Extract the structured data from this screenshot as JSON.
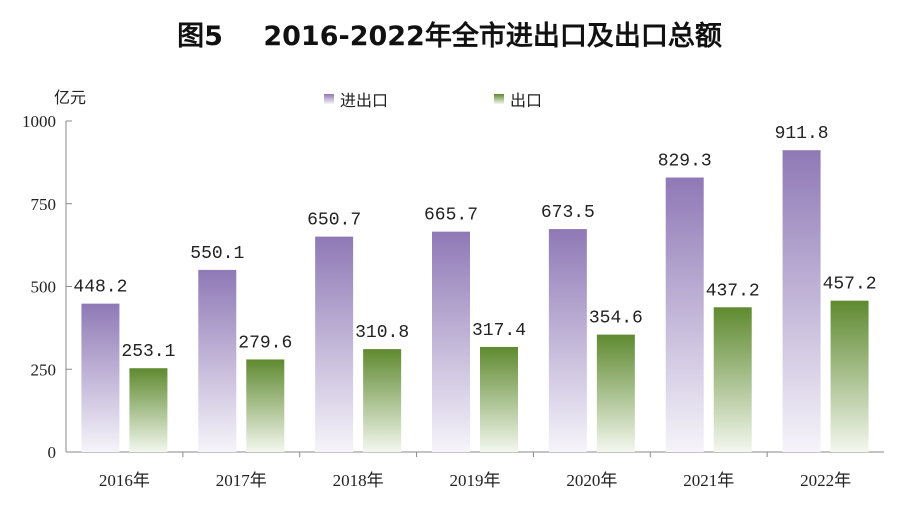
{
  "chart_data": {
    "type": "bar",
    "title": "图5　 2016-2022年全市进出口及出口总额",
    "ylabel": "亿元",
    "xlabel": "",
    "ylim": [
      0,
      1000
    ],
    "yticks": [
      0,
      250,
      500,
      750,
      1000
    ],
    "ytick_labels": [
      "0",
      "250",
      "500",
      "750",
      "1000"
    ],
    "grid": false,
    "legend_position": "top-center",
    "categories": [
      "2016年",
      "2017年",
      "2018年",
      "2019年",
      "2020年",
      "2021年",
      "2022年"
    ],
    "series": [
      {
        "name": "进出口",
        "color": "#8f79b6",
        "values": [
          448.2,
          550.1,
          650.7,
          665.7,
          673.5,
          829.3,
          911.8
        ],
        "labels": [
          "448.2",
          "550.1",
          "650.7",
          "665.7",
          "673.5",
          "829.3",
          "911.8"
        ]
      },
      {
        "name": "出口",
        "color": "#5f8a30",
        "values": [
          253.1,
          279.6,
          310.8,
          317.4,
          354.6,
          437.2,
          457.2
        ],
        "labels": [
          "253.1",
          "279.6",
          "310.8",
          "317.4",
          "354.6",
          "437.2",
          "457.2"
        ]
      }
    ]
  }
}
